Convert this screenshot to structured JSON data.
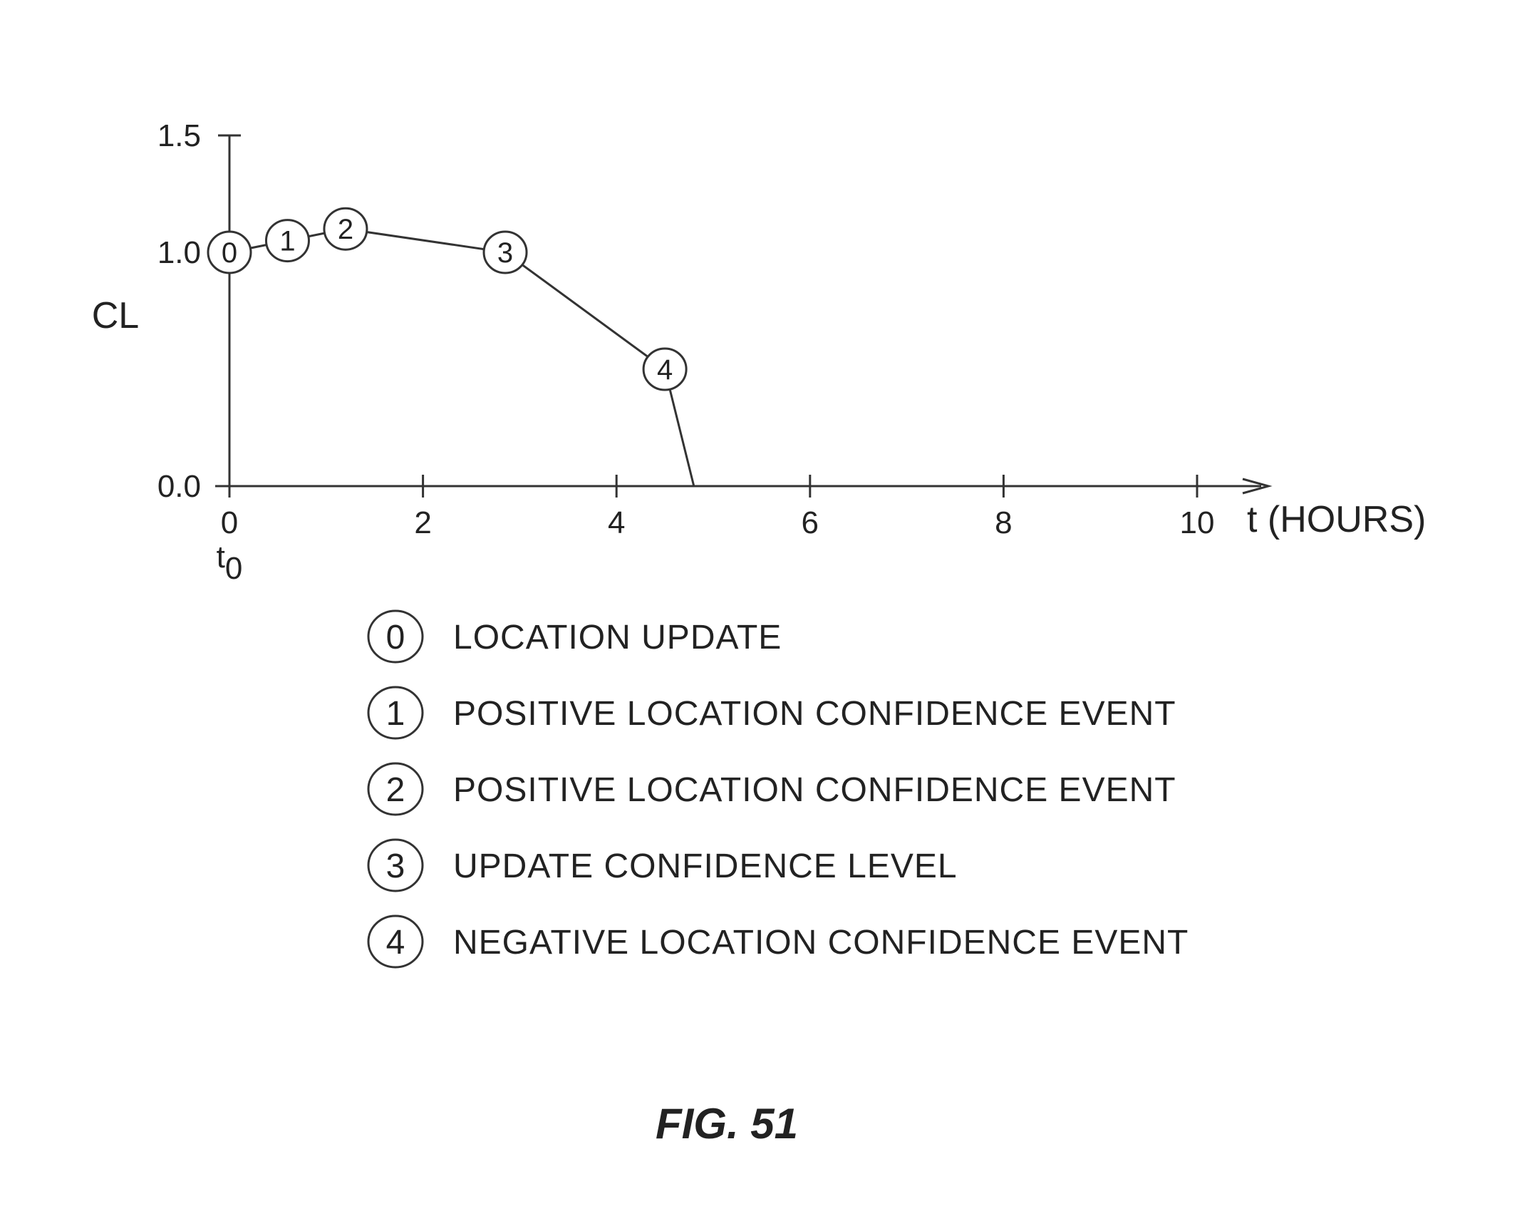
{
  "chart_data": {
    "type": "line",
    "xlabel": "t (HOURS)",
    "ylabel": "CL",
    "xlim": [
      0,
      10
    ],
    "ylim": [
      0,
      1.5
    ],
    "x_ticks": [
      "0",
      "2",
      "4",
      "6",
      "8",
      "10"
    ],
    "y_ticks": [
      "0.0",
      "1.0",
      "1.5"
    ],
    "origin_label": "t",
    "origin_subscript": "0",
    "grid": false,
    "series": [
      {
        "x": [
          0,
          0.6,
          1.2,
          2.85,
          4.5,
          4.8
        ],
        "y": [
          1.0,
          1.05,
          1.1,
          1.0,
          0.5,
          0.0
        ]
      }
    ],
    "markers": [
      {
        "label": "0",
        "x": 0,
        "y": 1.0
      },
      {
        "label": "1",
        "x": 0.6,
        "y": 1.05
      },
      {
        "label": "2",
        "x": 1.2,
        "y": 1.1
      },
      {
        "label": "3",
        "x": 2.85,
        "y": 1.0
      },
      {
        "label": "4",
        "x": 4.5,
        "y": 0.5
      }
    ],
    "legend": [
      {
        "num": "0",
        "text": "LOCATION UPDATE"
      },
      {
        "num": "1",
        "text": "POSITIVE LOCATION CONFIDENCE EVENT"
      },
      {
        "num": "2",
        "text": "POSITIVE LOCATION CONFIDENCE EVENT"
      },
      {
        "num": "3",
        "text": "UPDATE CONFIDENCE LEVEL"
      },
      {
        "num": "4",
        "text": "NEGATIVE LOCATION CONFIDENCE EVENT"
      }
    ]
  },
  "figure_label": "FIG. 51"
}
